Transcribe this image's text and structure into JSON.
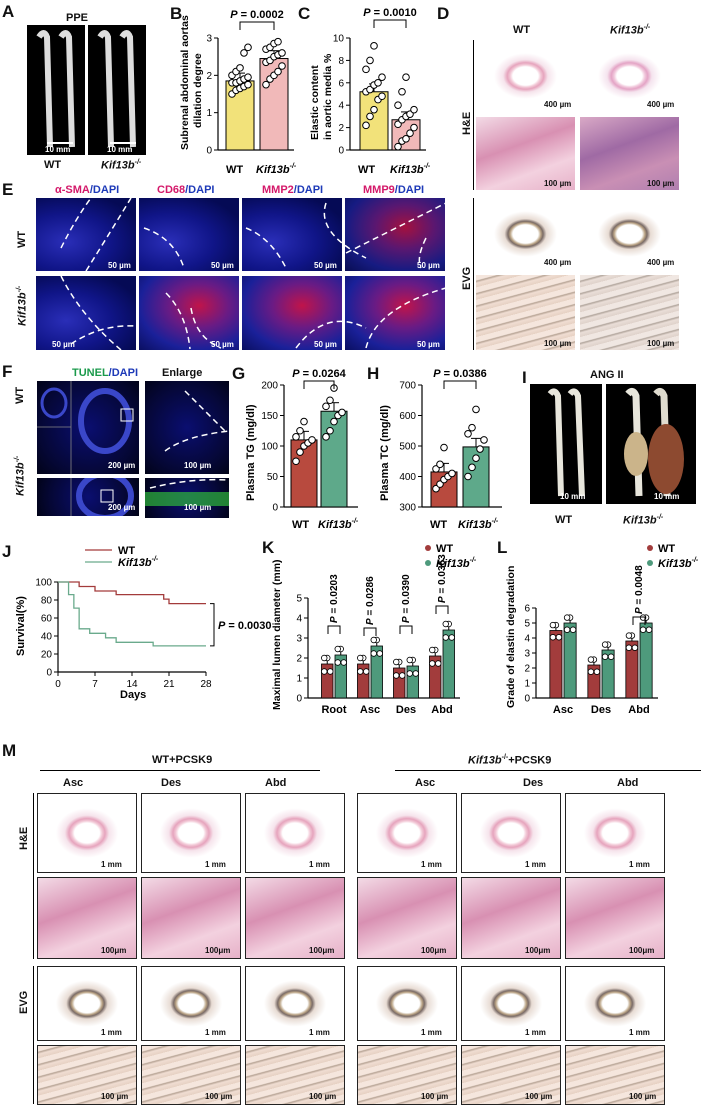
{
  "panels": {
    "A": "A",
    "B": "B",
    "C": "C",
    "D": "D",
    "E": "E",
    "F": "F",
    "G": "G",
    "H": "H",
    "I": "I",
    "J": "J",
    "K": "K",
    "L": "L",
    "M": "M"
  },
  "A": {
    "title": "PPE",
    "scale": "10 mm",
    "wt": "WT",
    "ko": "Kif13b"
  },
  "B": {
    "p": "P = 0.0002",
    "ylabel1": "Subrenal abdominal aortas",
    "ylabel2": "dilation degree",
    "wt": "WT",
    "ko": "Kif13b",
    "chart_data": {
      "type": "bar",
      "categories": [
        "WT",
        "Kif13b-/-"
      ],
      "values": [
        1.85,
        2.45
      ],
      "ylim": [
        0,
        3
      ],
      "yticks": [
        "0",
        "1",
        "2",
        "3"
      ],
      "points": [
        [
          1.5,
          1.6,
          1.65,
          1.7,
          1.75,
          1.8,
          1.8,
          1.85,
          1.9,
          1.95,
          2.0,
          2.1,
          2.2,
          2.6,
          2.75
        ],
        [
          1.75,
          1.9,
          2.0,
          2.1,
          2.25,
          2.35,
          2.4,
          2.5,
          2.55,
          2.6,
          2.7,
          2.75,
          2.85,
          2.9
        ]
      ]
    }
  },
  "C": {
    "p": "P = 0.0010",
    "ylabel1": "Elastic content",
    "ylabel2": "in aortic media %",
    "wt": "WT",
    "ko": "Kif13b",
    "chart_data": {
      "type": "bar",
      "categories": [
        "WT",
        "Kif13b-/-"
      ],
      "values": [
        5.2,
        2.7
      ],
      "ylim": [
        0,
        10
      ],
      "yticks": [
        "0",
        "2",
        "4",
        "6",
        "8",
        "10"
      ],
      "points": [
        [
          2.2,
          3.0,
          3.6,
          4.5,
          4.8,
          5.2,
          5.4,
          5.8,
          6.0,
          6.5,
          7.2,
          8.0,
          9.3
        ],
        [
          0.3,
          0.8,
          1.0,
          1.5,
          2.0,
          2.3,
          2.7,
          3.0,
          3.2,
          3.6,
          4.0,
          5.2,
          6.5
        ]
      ]
    }
  },
  "D": {
    "wt": "WT",
    "ko": "Kif13b",
    "he": "H&E",
    "evg": "EVG",
    "s400": "400 µm",
    "s100": "100 µm"
  },
  "E": {
    "h1a": "α-SMA",
    "h2a": "CD68",
    "h3a": "MMP2",
    "h4a": "MMP9",
    "dapi": "/DAPI",
    "wt": "WT",
    "ko": "Kif13b",
    "s50": "50 µm"
  },
  "F": {
    "h1a": "TUNEL",
    "h1b": "/DAPI",
    "h2": "Enlarge",
    "wt": "WT",
    "ko": "Kif13b",
    "s200": "200 µm",
    "s100": "100 µm"
  },
  "G": {
    "p": "P = 0.0264",
    "ylabel": "Plasma TG (mg/dl)",
    "wt": "WT",
    "ko": "Kif13b",
    "chart_data": {
      "type": "bar",
      "categories": [
        "WT",
        "Kif13b-/-"
      ],
      "values": [
        110,
        157
      ],
      "ylim": [
        0,
        200
      ],
      "yticks": [
        "0",
        "50",
        "100",
        "150",
        "200"
      ],
      "points": [
        [
          75,
          90,
          100,
          105,
          110,
          115,
          125,
          140
        ],
        [
          115,
          125,
          140,
          150,
          155,
          165,
          175,
          195
        ]
      ]
    }
  },
  "H": {
    "p": "P = 0.0386",
    "ylabel": "Plasma TC (mg/dl)",
    "wt": "WT",
    "ko": "Kif13b",
    "chart_data": {
      "type": "bar",
      "categories": [
        "WT",
        "Kif13b-/-"
      ],
      "values": [
        415,
        497
      ],
      "ylim": [
        300,
        700
      ],
      "yticks": [
        "300",
        "400",
        "500",
        "600",
        "700"
      ],
      "points": [
        [
          360,
          375,
          390,
          400,
          410,
          425,
          440,
          495
        ],
        [
          400,
          430,
          460,
          490,
          520,
          540,
          560,
          620
        ]
      ]
    }
  },
  "I": {
    "title": "ANG II",
    "scale": "10 mm",
    "wt": "WT",
    "ko": "Kif13b"
  },
  "J": {
    "legend_wt": "WT",
    "legend_ko": "Kif13b",
    "ylabel": "Survival(%)",
    "xlabel": "Days",
    "p": "P = 0.0030",
    "chart_data": {
      "type": "line",
      "x_ticks": [
        "0",
        "7",
        "14",
        "21",
        "28"
      ],
      "y_ticks": [
        "0",
        "20",
        "40",
        "60",
        "80",
        "100"
      ],
      "xlim": [
        0,
        28
      ],
      "ylim": [
        0,
        100
      ],
      "series": [
        {
          "name": "WT",
          "color": "#a33b3b",
          "steps": [
            [
              0,
              100
            ],
            [
              4,
              95
            ],
            [
              7,
              90
            ],
            [
              11,
              86
            ],
            [
              14,
              86
            ],
            [
              18,
              86
            ],
            [
              20,
              81
            ],
            [
              21,
              76
            ],
            [
              28,
              76
            ]
          ]
        },
        {
          "name": "Kif13b-/-",
          "color": "#6aaa8c",
          "steps": [
            [
              0,
              100
            ],
            [
              2,
              86
            ],
            [
              3,
              71
            ],
            [
              4,
              48
            ],
            [
              6,
              43
            ],
            [
              9,
              38
            ],
            [
              11,
              33
            ],
            [
              18,
              29
            ],
            [
              28,
              29
            ]
          ]
        }
      ]
    }
  },
  "K": {
    "ylabel": "Maximal lumen diameter (mm)",
    "legend_wt": "WT",
    "legend_ko": "Kif13b",
    "pvals": [
      "P = 0.0203",
      "P = 0.0286",
      "P = 0.0390",
      "P = 0.0363"
    ],
    "chart_data": {
      "type": "bar",
      "categories": [
        "Root",
        "Asc",
        "Des",
        "Abd"
      ],
      "ylim": [
        0,
        5
      ],
      "yticks": [
        "0",
        "1",
        "2",
        "3",
        "4",
        "5"
      ],
      "series": [
        {
          "name": "WT",
          "color": "#a23c3c",
          "values": [
            1.7,
            1.7,
            1.5,
            2.1
          ]
        },
        {
          "name": "Kif13b-/-",
          "color": "#4e9a7c",
          "values": [
            2.15,
            2.6,
            1.6,
            3.4
          ]
        }
      ]
    }
  },
  "L": {
    "ylabel": "Grade of elastin degradation",
    "legend_wt": "WT",
    "legend_ko": "Kif13b",
    "p": "P = 0.0048",
    "chart_data": {
      "type": "bar",
      "categories": [
        "Asc",
        "Des",
        "Abd"
      ],
      "ylim": [
        0,
        6
      ],
      "yticks": [
        "0",
        "1",
        "2",
        "3",
        "4",
        "5",
        "6"
      ],
      "series": [
        {
          "name": "WT",
          "color": "#a23c3c",
          "values": [
            4.5,
            2.2,
            3.8
          ]
        },
        {
          "name": "Kif13b-/-",
          "color": "#4e9a7c",
          "values": [
            5.0,
            3.2,
            5.0
          ]
        }
      ]
    }
  },
  "M": {
    "g1": "WT+PCSK9",
    "g2a": "Kif13b",
    "g2b": "+PCSK9",
    "cols": [
      "Asc",
      "Des",
      "Abd"
    ],
    "he": "H&E",
    "evg": "EVG",
    "s1mm": "1 mm",
    "s100a": "100μm",
    "s100b": "100 µm"
  },
  "sup": "-/-"
}
